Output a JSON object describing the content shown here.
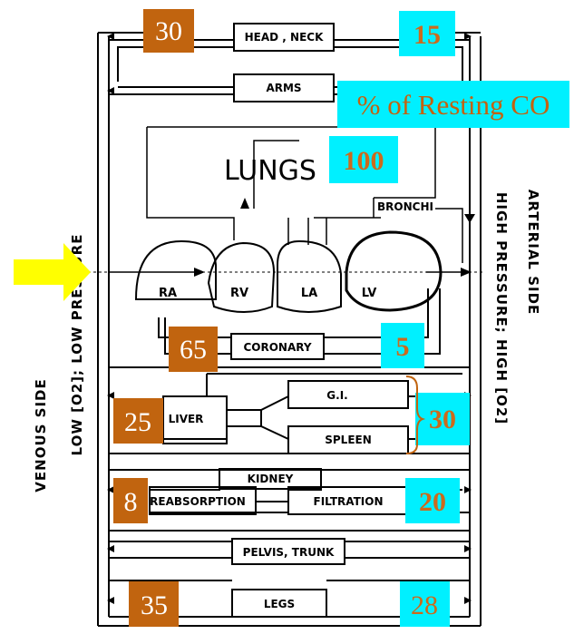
{
  "legend": "% of Resting CO",
  "organs": {
    "head_neck": "HEAD , NECK",
    "arms": "ARMS",
    "lungs": "LUNGS",
    "bronchi": "BRONCHI",
    "coronary": "CORONARY",
    "liver": "LIVER",
    "gi": "G.I.",
    "spleen": "SPLEEN",
    "kidney": "KIDNEY",
    "reabsorption": "REABSORPTION",
    "filtration": "FILTRATION",
    "pelvis_trunk": "PELVIS, TRUNK",
    "legs": "LEGS"
  },
  "chambers": {
    "ra": "RA",
    "rv": "RV",
    "la": "LA",
    "lv": "LV"
  },
  "sides": {
    "venous_1": "VENOUS SIDE",
    "venous_2": "LOW [O2]; LOW PRESSURE",
    "arterial_1": "ARTERIAL SIDE",
    "arterial_2": "HIGH PRESSURE; HIGH [O2]"
  },
  "badges": {
    "head_venous": "30",
    "head_arterial": "15",
    "lungs": "100",
    "coronary_venous": "65",
    "coronary_arterial": "5",
    "liver": "25",
    "gi_spleen": "30",
    "kidney_venous": "8",
    "kidney_arterial": "20",
    "legs_venous": "35",
    "legs_arterial": "28"
  },
  "colors": {
    "venous_badge": "#c1640f",
    "arterial_badge": "#00f0ff",
    "arrow": "#ffff00"
  },
  "icons": {
    "entry_arrow": "arrow-right-icon"
  }
}
